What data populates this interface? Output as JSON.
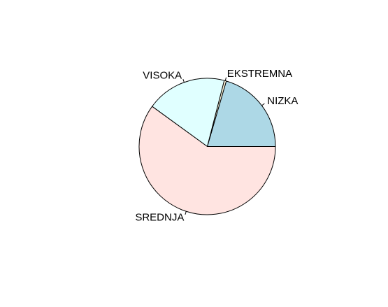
{
  "chart_data": {
    "type": "pie",
    "title": "",
    "start_angle_deg": 0,
    "direction": "counterclockwise",
    "slices": [
      {
        "label": "NIZKA",
        "value": 20.5,
        "color": "#ADD8E6"
      },
      {
        "label": "EKSTREMNA",
        "value": 0.5,
        "color": "#FFF8DC"
      },
      {
        "label": "VISOKA",
        "value": 19.0,
        "color": "#E0FFFF"
      },
      {
        "label": "SREDNJA",
        "value": 60.0,
        "color": "#FFE4E1"
      }
    ]
  }
}
